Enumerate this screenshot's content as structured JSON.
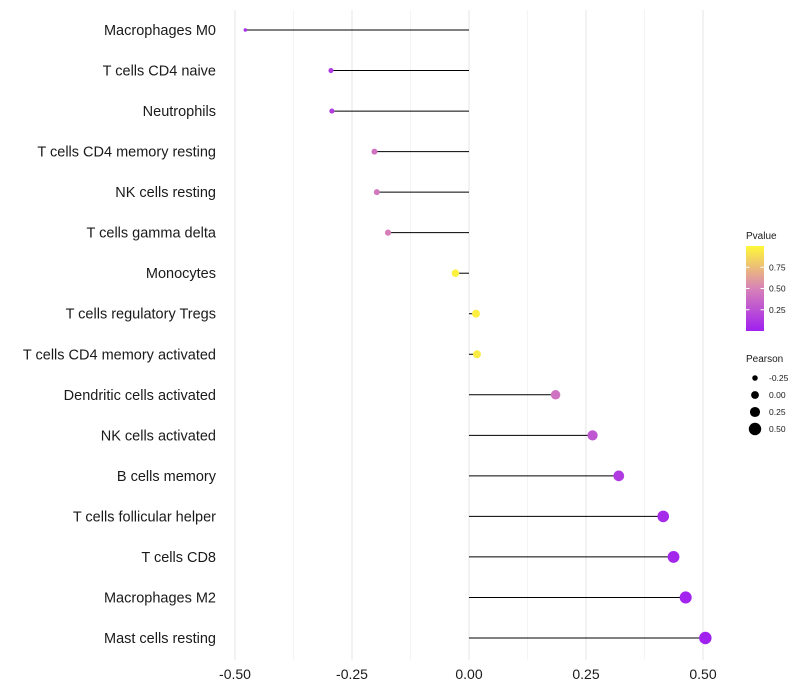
{
  "chart_data": {
    "type": "lollipop",
    "xlim": [
      -0.5,
      0.5
    ],
    "x_ticks": [
      "-0.50",
      "-0.25",
      "0.00",
      "0.25",
      "0.50"
    ],
    "x_tick_values": [
      -0.5,
      -0.25,
      0,
      0.25,
      0.5
    ],
    "categories": [
      "Macrophages M0",
      "T cells CD4 naive",
      "Neutrophils",
      "T cells CD4 memory resting",
      "NK cells resting",
      "T cells gamma delta",
      "Monocytes",
      "T cells regulatory  Tregs ",
      "T cells CD4 memory activated",
      "Dendritic cells activated",
      "NK cells activated",
      "B cells memory",
      "T cells follicular helper",
      "T cells CD8",
      "Macrophages M2",
      "Mast cells resting"
    ],
    "pearson": [
      -0.478,
      -0.295,
      -0.293,
      -0.202,
      -0.197,
      -0.173,
      -0.029,
      0.015,
      0.017,
      0.185,
      0.264,
      0.32,
      0.415,
      0.437,
      0.463,
      0.505
    ],
    "pvalue": [
      0.06,
      0.14,
      0.15,
      0.42,
      0.45,
      0.48,
      0.97,
      0.96,
      0.95,
      0.42,
      0.28,
      0.14,
      0.05,
      0.04,
      0.02,
      0.01
    ],
    "colors": {
      "low": "#A020F0",
      "mid": "#D882B8",
      "high": "#FFF838"
    },
    "legend_color": {
      "title": "Pvalue",
      "labels": [
        "0.75",
        "0.50",
        "0.25"
      ],
      "values": [
        0.75,
        0.5,
        0.25
      ],
      "range": [
        0.0,
        1.0
      ]
    },
    "legend_size": {
      "title": "Pearson",
      "labels": [
        "-0.25",
        "0.00",
        "0.25",
        "0.50"
      ],
      "values": [
        -0.25,
        0.0,
        0.25,
        0.5
      ]
    }
  }
}
